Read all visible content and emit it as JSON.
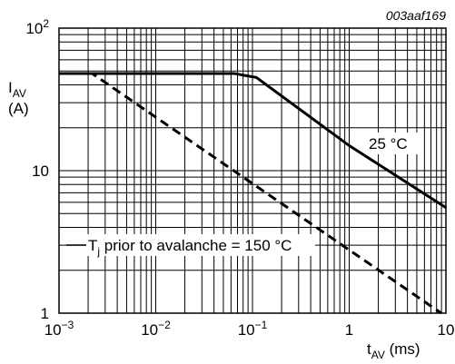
{
  "figure_code": "003aaf169",
  "chart_data": {
    "type": "line",
    "title": "",
    "xlabel": {
      "main": "t",
      "sub": "AV",
      "unit": "(ms)"
    },
    "ylabel": {
      "main": "I",
      "sub": "AV",
      "unit": "(A)"
    },
    "x_scale": "log",
    "y_scale": "log",
    "xlim": [
      0.001,
      10
    ],
    "ylim": [
      1,
      100
    ],
    "grid": true,
    "x_ticks": [
      {
        "value": 0.001,
        "base": "10",
        "exp": "−3"
      },
      {
        "value": 0.01,
        "base": "10",
        "exp": "−2"
      },
      {
        "value": 0.1,
        "base": "10",
        "exp": "−1"
      },
      {
        "value": 1,
        "base": "1",
        "exp": ""
      },
      {
        "value": 10,
        "base": "10",
        "exp": ""
      }
    ],
    "y_ticks": [
      {
        "value": 1,
        "base": "1",
        "exp": ""
      },
      {
        "value": 10,
        "base": "10",
        "exp": ""
      },
      {
        "value": 100,
        "base": "10",
        "exp": "2"
      }
    ],
    "series": [
      {
        "name": "25 °C",
        "style": "solid",
        "points": [
          [
            0.001,
            48
          ],
          [
            0.065,
            48
          ],
          [
            0.11,
            45
          ],
          [
            1,
            15
          ],
          [
            10,
            5.5
          ]
        ]
      },
      {
        "name_parts": {
          "main": "T",
          "sub": "j",
          "rest": " prior to avalanche = 150 °C"
        },
        "style": "dashed",
        "points": [
          [
            0.001,
            48
          ],
          [
            0.0022,
            48
          ],
          [
            10,
            0.95
          ]
        ]
      }
    ]
  }
}
